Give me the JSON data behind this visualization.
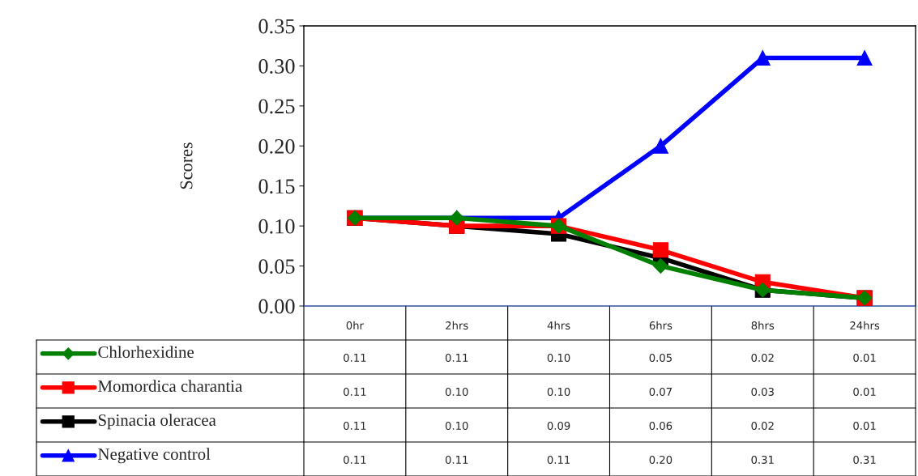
{
  "chart_data": {
    "type": "line",
    "ylabel": "Scores",
    "categories": [
      "0hr",
      "2hrs",
      "4hrs",
      "6hrs",
      "8hrs",
      "24hrs"
    ],
    "ylim": [
      0,
      0.35
    ],
    "yticks": [
      {
        "value": 0,
        "label": "0.00"
      },
      {
        "value": 0.05,
        "label": "0.05"
      },
      {
        "value": 0.1,
        "label": "0.10"
      },
      {
        "value": 0.15,
        "label": "0.15"
      },
      {
        "value": 0.2,
        "label": "0.20"
      },
      {
        "value": 0.25,
        "label": "0.25"
      },
      {
        "value": 0.3,
        "label": "0.30"
      },
      {
        "value": 0.35,
        "label": "0.35"
      }
    ],
    "grid": false,
    "legend": "bottom left",
    "series": [
      {
        "name": "Chlorhexidine",
        "color": "#008000",
        "marker": "diamond",
        "values": [
          0.11,
          0.11,
          0.1,
          0.05,
          0.02,
          0.01
        ],
        "value_labels": [
          "0.11",
          "0.11",
          "0.10",
          "0.05",
          "0.02",
          "0.01"
        ]
      },
      {
        "name": "Momordica charantia",
        "color": "#ff0000",
        "marker": "square",
        "values": [
          0.11,
          0.1,
          0.1,
          0.07,
          0.03,
          0.01
        ],
        "value_labels": [
          "0.11",
          "0.10",
          "0.10",
          "0.07",
          "0.03",
          "0.01"
        ]
      },
      {
        "name": "Spinacia oleracea",
        "color": "#000000",
        "marker": "square",
        "values": [
          0.11,
          0.1,
          0.09,
          0.06,
          0.02,
          0.01
        ],
        "value_labels": [
          "0.11",
          "0.10",
          "0.09",
          "0.06",
          "0.02",
          "0.01"
        ]
      },
      {
        "name": "Negative control",
        "color": "#0000ff",
        "marker": "triangle",
        "values": [
          0.11,
          0.11,
          0.11,
          0.2,
          0.31,
          0.31
        ],
        "value_labels": [
          "0.11",
          "0.11",
          "0.11",
          "0.20",
          "0.31",
          "0.31"
        ]
      }
    ]
  }
}
